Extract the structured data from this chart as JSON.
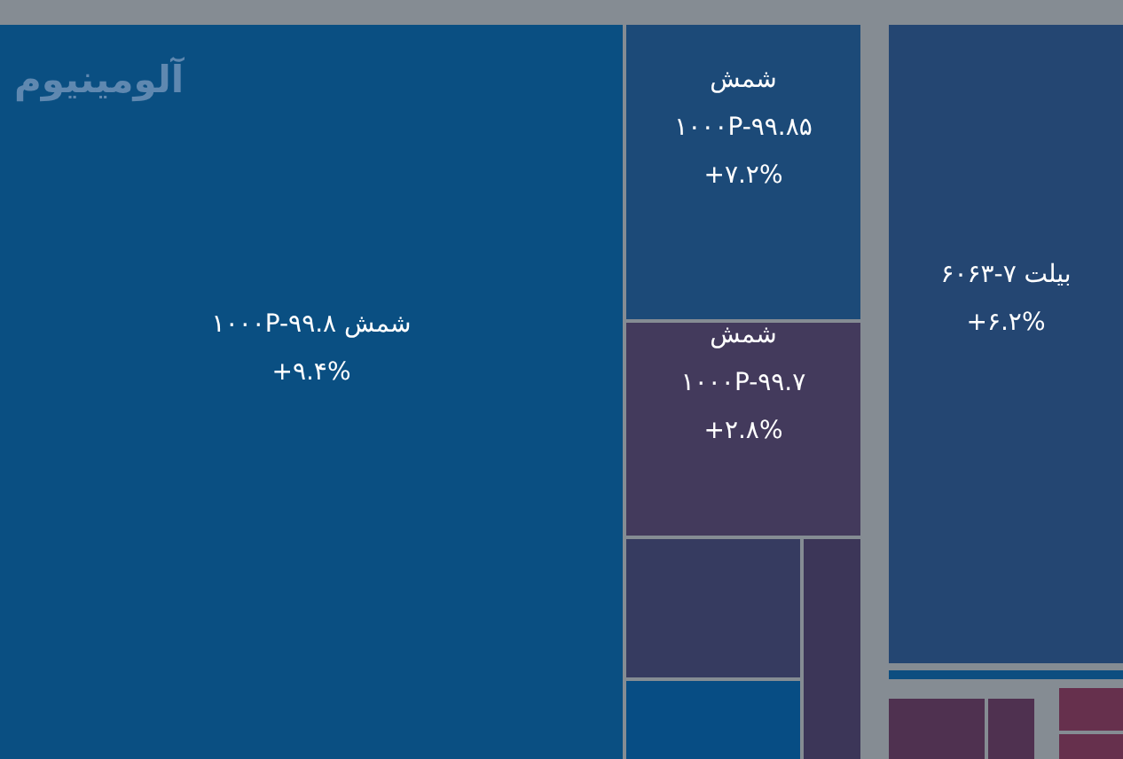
{
  "chart_data": {
    "type": "other",
    "title": "آلومینیوم",
    "categories": [
      "شمش ۱۰۰۰P-۹۹.۸",
      "شمش ۱۰۰۰P-۹۹.۸۵",
      "شمش ۱۰۰۰P-۹۹.۷",
      null,
      null,
      null,
      "بیلت ۶۰۶۳-۷",
      null,
      null,
      null,
      null,
      null
    ],
    "values": [
      9.4,
      7.2,
      2.8,
      null,
      null,
      null,
      6.2,
      null,
      null,
      null,
      null,
      null
    ],
    "value_labels": [
      "+۹.۴%",
      "+۷.۲%",
      "+۲.۸%",
      null,
      null,
      null,
      "+۶.۲%",
      null,
      null,
      null,
      null,
      null
    ],
    "colors": [
      "#0a4f82",
      "#1c4a78",
      "#433a5c",
      "#363b60",
      "#074d84",
      "#3c3658",
      "#244672",
      "#0d4e80",
      "#4f3150",
      "#4f3150",
      "#66304d",
      "#66304d"
    ]
  }
}
